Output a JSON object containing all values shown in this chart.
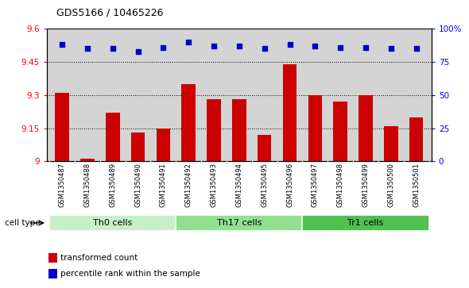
{
  "title": "GDS5166 / 10465226",
  "samples": [
    "GSM1350487",
    "GSM1350488",
    "GSM1350489",
    "GSM1350490",
    "GSM1350491",
    "GSM1350492",
    "GSM1350493",
    "GSM1350494",
    "GSM1350495",
    "GSM1350496",
    "GSM1350497",
    "GSM1350498",
    "GSM1350499",
    "GSM1350500",
    "GSM1350501"
  ],
  "bar_values": [
    9.31,
    9.01,
    9.22,
    9.13,
    9.15,
    9.35,
    9.28,
    9.28,
    9.12,
    9.44,
    9.3,
    9.27,
    9.3,
    9.16,
    9.2
  ],
  "percentile_values": [
    88,
    85,
    85,
    83,
    86,
    90,
    87,
    87,
    85,
    88,
    87,
    86,
    86,
    85,
    85
  ],
  "bar_color": "#cc0000",
  "dot_color": "#0000cc",
  "ylim_left": [
    9.0,
    9.6
  ],
  "ylim_right": [
    0,
    100
  ],
  "yticks_left": [
    9.0,
    9.15,
    9.3,
    9.45,
    9.6
  ],
  "ytick_labels_left": [
    "9",
    "9.15",
    "9.3",
    "9.45",
    "9.6"
  ],
  "yticks_right": [
    0,
    25,
    50,
    75,
    100
  ],
  "ytick_labels_right": [
    "0",
    "25",
    "50",
    "75",
    "100%"
  ],
  "groups": [
    {
      "label": "Th0 cells",
      "start": 0,
      "end": 4,
      "color": "#c8f0c8"
    },
    {
      "label": "Th17 cells",
      "start": 5,
      "end": 9,
      "color": "#90e090"
    },
    {
      "label": "Tr1 cells",
      "start": 10,
      "end": 14,
      "color": "#50c050"
    }
  ],
  "cell_type_label": "cell type",
  "legend_bar_label": "transformed count",
  "legend_dot_label": "percentile rank within the sample",
  "bg_color": "#d4d4d4",
  "plot_bg_color": "#ffffff",
  "strip_bg": "#c8c8c8"
}
